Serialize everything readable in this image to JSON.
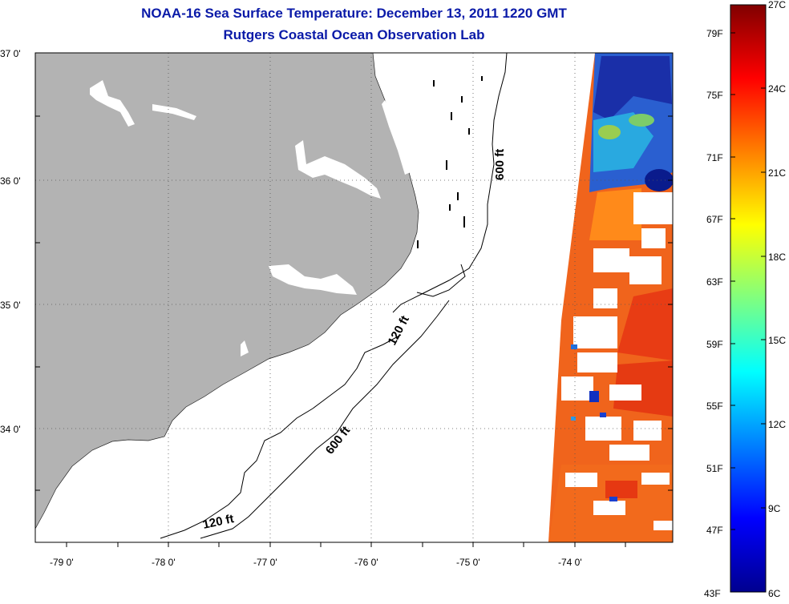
{
  "title": {
    "line1": "NOAA-16 Sea Surface Temperature:  December 13, 2011 1220 GMT",
    "line2": "Rutgers Coastal Ocean Observation Lab"
  },
  "axes": {
    "lat_labels": [
      "37 0'",
      "36 0'",
      "35 0'",
      "34 0'"
    ],
    "lon_labels": [
      "-79 0'",
      "-78 0'",
      "-77 0'",
      "-76 0'",
      "-75 0'",
      "-74 0'"
    ]
  },
  "contours": {
    "c600_north": "600 ft",
    "c120_mid": "120 ft",
    "c600_south": "600 ft",
    "c120_south": "120 ft"
  },
  "colorbar": {
    "fahrenheit": [
      "79F",
      "75F",
      "71F",
      "67F",
      "63F",
      "59F",
      "55F",
      "51F",
      "47F",
      "43F"
    ],
    "celsius": [
      "27C",
      "24C",
      "21C",
      "18C",
      "15C",
      "12C",
      "9C",
      "6C"
    ],
    "range_c": [
      6,
      27
    ],
    "colors": [
      "#00008f",
      "#0000ff",
      "#00ffff",
      "#ffff00",
      "#ff0000",
      "#800000"
    ]
  },
  "colors": {
    "title": "#0a1aa8",
    "land": "#b3b3b3",
    "sst_warm": "#f25a14",
    "sst_cool": "#1f6fd8"
  }
}
